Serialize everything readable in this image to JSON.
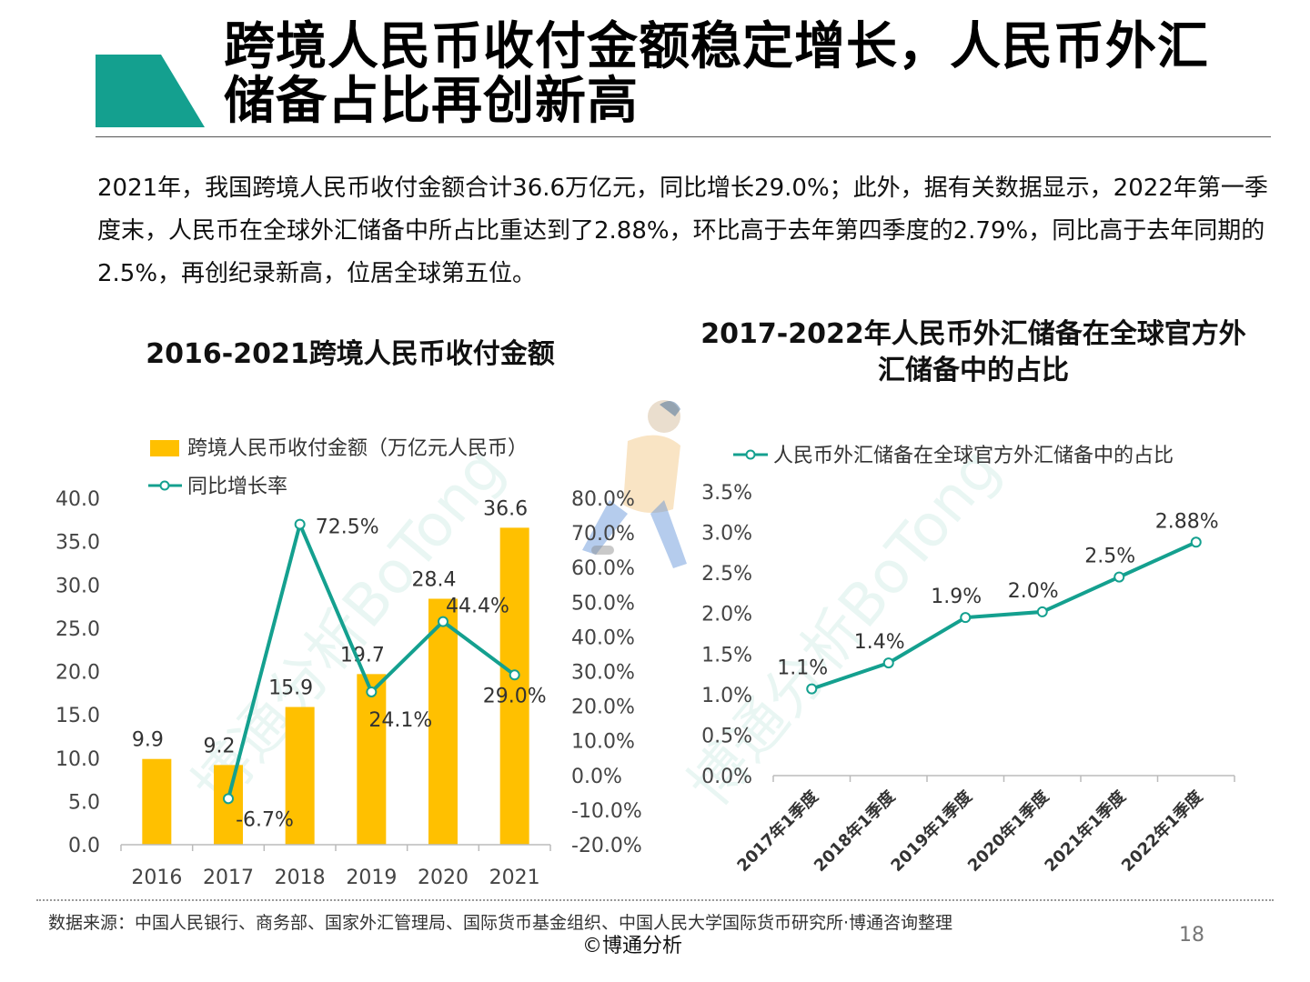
{
  "header": {
    "title": "跨境人民币收付金额稳定增长，人民币外汇储备占比再创新高",
    "accent_color": "#14a08f"
  },
  "intro": {
    "text": "2021年，我国跨境人民币收付金额合计36.6万亿元，同比增长29.0%；此外，据有关数据显示，2022年第一季度末，人民币在全球外汇储备中所占比重达到了2.88%，环比高于去年第四季度的2.79%，同比高于去年同期的2.5%，再创纪录新高，位居全球第五位。"
  },
  "watermark": "博通分析BoTong",
  "chart_data": [
    {
      "type": "bar",
      "title": "2016-2021跨境人民币收付金额",
      "categories": [
        "2016",
        "2017",
        "2018",
        "2019",
        "2020",
        "2021"
      ],
      "series": [
        {
          "name": "跨境人民币收付金额（万亿元人民币）",
          "type": "bar",
          "axis": "left",
          "color": "#ffc000",
          "values": [
            9.9,
            9.2,
            15.9,
            19.7,
            28.4,
            36.6
          ],
          "labels": [
            "9.9",
            "9.2",
            "15.9",
            "19.7",
            "28.4",
            "36.6"
          ]
        },
        {
          "name": "同比增长率",
          "type": "line",
          "axis": "right",
          "color": "#14a08f",
          "values": [
            null,
            -6.7,
            72.5,
            24.1,
            44.4,
            29.0
          ],
          "labels": [
            "",
            "-6.7%",
            "72.5%",
            "24.1%",
            "44.4%",
            "29.0%"
          ]
        }
      ],
      "yleft": {
        "min": 0,
        "max": 40,
        "step": 5,
        "ticks": [
          "0.0",
          "5.0",
          "10.0",
          "15.0",
          "20.0",
          "25.0",
          "30.0",
          "35.0",
          "40.0"
        ]
      },
      "yright": {
        "min": -20,
        "max": 80,
        "step": 10,
        "ticks": [
          "-20.0%",
          "-10.0%",
          "0.0%",
          "10.0%",
          "20.0%",
          "30.0%",
          "40.0%",
          "50.0%",
          "60.0%",
          "70.0%",
          "80.0%"
        ]
      },
      "legend": "top-left",
      "grid": false
    },
    {
      "type": "line",
      "title": "2017-2022年人民币外汇储备在全球官方外汇储备中的占比",
      "categories": [
        "2017年1季度",
        "2018年1季度",
        "2019年1季度",
        "2020年1季度",
        "2021年1季度",
        "2022年1季度"
      ],
      "series": [
        {
          "name": "人民币外汇储备在全球官方外汇储备中的占比",
          "color": "#14a08f",
          "values": [
            1.07,
            1.39,
            1.95,
            2.02,
            2.45,
            2.88
          ],
          "labels": [
            "1.1%",
            "1.4%",
            "1.9%",
            "2.0%",
            "2.5%",
            "2.88%"
          ]
        }
      ],
      "y": {
        "min": 0,
        "max": 3.5,
        "step": 0.5,
        "ticks": [
          "0.0%",
          "0.5%",
          "1.0%",
          "1.5%",
          "2.0%",
          "2.5%",
          "3.0%",
          "3.5%"
        ]
      },
      "legend": "top",
      "grid": false
    }
  ],
  "footer": {
    "source": "数据来源：中国人民银行、商务部、国家外汇管理局、国际货币基金组织、中国人民大学国际货币研究所·博通咨询整理",
    "copyright": "©博通分析",
    "page_number": "18"
  }
}
